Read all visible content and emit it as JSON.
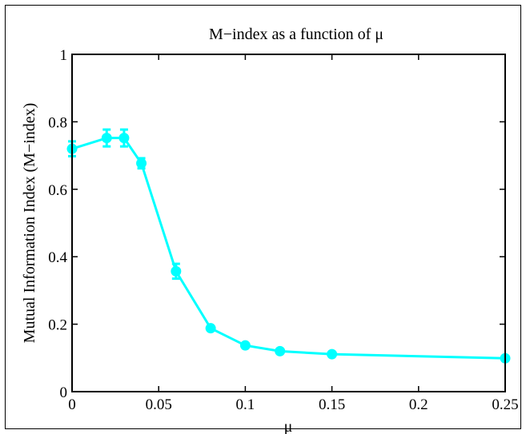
{
  "chart_data": {
    "type": "line",
    "title": "M−index as a function of μ",
    "xlabel": "μ",
    "ylabel": "Mutual Information Index (M−index)",
    "xlim": [
      0,
      0.25
    ],
    "ylim": [
      0,
      1
    ],
    "x_ticks": [
      {
        "value": 0,
        "label": "0"
      },
      {
        "value": 0.05,
        "label": "0.05"
      },
      {
        "value": 0.1,
        "label": "0.1"
      },
      {
        "value": 0.15,
        "label": "0.15"
      },
      {
        "value": 0.2,
        "label": "0.2"
      },
      {
        "value": 0.25,
        "label": "0.25"
      }
    ],
    "y_ticks": [
      {
        "value": 0,
        "label": "0"
      },
      {
        "value": 0.2,
        "label": "0.2"
      },
      {
        "value": 0.4,
        "label": "0.4"
      },
      {
        "value": 0.6,
        "label": "0.6"
      },
      {
        "value": 0.8,
        "label": "0.8"
      },
      {
        "value": 1,
        "label": "1"
      }
    ],
    "grid": false,
    "series": [
      {
        "color": "#00ffff",
        "marker": "circle",
        "points": [
          {
            "x": 0,
            "y": 0.72,
            "err": 0.022
          },
          {
            "x": 0.02,
            "y": 0.752,
            "err": 0.025
          },
          {
            "x": 0.03,
            "y": 0.752,
            "err": 0.025
          },
          {
            "x": 0.04,
            "y": 0.677,
            "err": 0.015
          },
          {
            "x": 0.06,
            "y": 0.357,
            "err": 0.022
          },
          {
            "x": 0.08,
            "y": 0.188,
            "err": 0.006
          },
          {
            "x": 0.1,
            "y": 0.137,
            "err": 0.006
          },
          {
            "x": 0.12,
            "y": 0.12,
            "err": 0.005
          },
          {
            "x": 0.15,
            "y": 0.111,
            "err": 0.004
          },
          {
            "x": 0.25,
            "y": 0.099,
            "err": 0.004
          }
        ]
      }
    ]
  }
}
